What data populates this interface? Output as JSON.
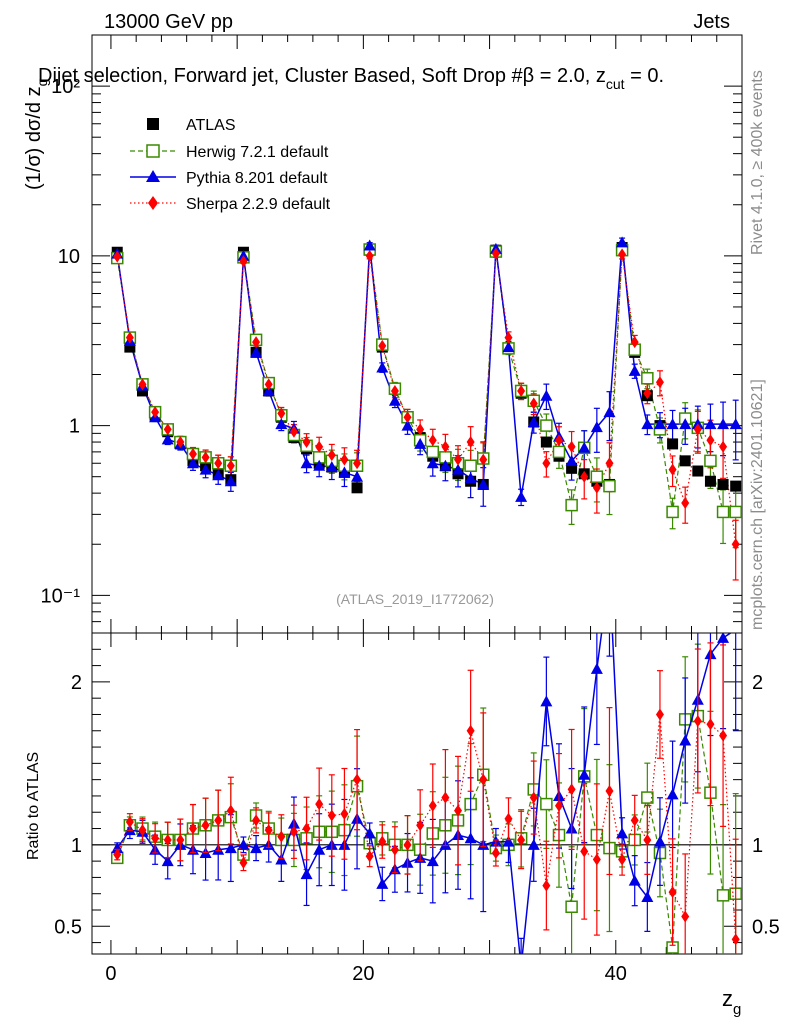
{
  "header": {
    "energy_label": "13000 GeV pp",
    "category_label": "Jets",
    "subtitle": "Dijet selection, Forward jet, Cluster Based, Soft Drop #β = 2.0, z",
    "subtitle_sub": "cut",
    "subtitle_tail": " = 0.",
    "side_label_top": "Rivet 4.1.0, ≥ 400k events",
    "side_label_bottom": "mcplots.cern.ch [arXiv:2401.10621]",
    "analysis_label": "(ATLAS_2019_I1772062)"
  },
  "colors": {
    "atlas": "#000000",
    "herwig": "#3a8a00",
    "pythia": "#0000e6",
    "sherpa": "#ff0000"
  },
  "chart_data": {
    "type": "scatter",
    "x_label": "z",
    "x_label_sub": "g",
    "y_label_main": "(1/σ) dσ/d z",
    "y_label_main_sub": "g",
    "y_label_ratio": "Ratio to ATLAS",
    "xlim": [
      -1.5,
      50.0
    ],
    "ylim_main": [
      0.06,
      200
    ],
    "ylim_ratio": [
      0.33,
      2.3
    ],
    "y_scale_main": "log",
    "x_ticks": [
      0,
      20,
      40
    ],
    "x_tick_labels": [
      "0",
      "20",
      "40"
    ],
    "y_ticks_main": [
      0.1,
      1,
      10,
      100
    ],
    "y_tick_labels_main": [
      "10⁻¹",
      "1",
      "10",
      "10²"
    ],
    "y_ticks_ratio": [
      0.5,
      1,
      2
    ],
    "y_tick_labels_ratio": [
      "0.5",
      "1",
      "2"
    ],
    "legend_position": "top-left",
    "x": [
      0.5,
      1.5,
      2.5,
      3.5,
      4.5,
      5.5,
      6.5,
      7.5,
      8.5,
      9.5,
      10.5,
      11.5,
      12.5,
      13.5,
      14.5,
      15.5,
      16.5,
      17.5,
      18.5,
      19.5,
      20.5,
      21.5,
      22.5,
      23.5,
      24.5,
      25.5,
      26.5,
      27.5,
      28.5,
      29.5,
      30.5,
      31.5,
      32.5,
      33.5,
      34.5,
      35.5,
      36.5,
      37.5,
      38.5,
      39.5,
      40.5,
      41.5,
      42.5,
      43.5,
      44.5,
      45.5,
      46.5,
      47.5,
      48.5,
      49.5
    ],
    "series": [
      {
        "name": "ATLAS",
        "key": "atlas",
        "marker": "square-filled",
        "values": [
          10.5,
          2.9,
          1.6,
          1.15,
          0.92,
          0.78,
          0.62,
          0.58,
          0.52,
          0.48,
          10.5,
          2.7,
          1.6,
          1.12,
          0.85,
          0.73,
          0.6,
          0.57,
          0.53,
          0.43,
          10.8,
          2.9,
          1.65,
          1.12,
          0.85,
          0.66,
          0.58,
          0.52,
          0.47,
          0.45,
          10.8,
          2.85,
          1.55,
          1.05,
          0.8,
          0.66,
          0.56,
          0.52,
          0.47,
          0.45,
          11.2,
          2.7,
          1.5,
          1.0,
          0.78,
          0.62,
          0.54,
          0.47,
          0.45,
          0.44
        ]
      },
      {
        "name": "Herwig 7.2.1 default",
        "key": "herwig",
        "marker": "square-open",
        "line": "dashed",
        "values": [
          9.7,
          3.3,
          1.75,
          1.2,
          0.95,
          0.8,
          0.68,
          0.65,
          0.6,
          0.58,
          9.8,
          3.2,
          1.78,
          1.15,
          0.88,
          0.76,
          0.65,
          0.62,
          0.58,
          0.58,
          10.9,
          3.0,
          1.65,
          1.12,
          0.82,
          0.7,
          0.65,
          0.6,
          0.58,
          0.64,
          10.6,
          2.85,
          1.6,
          1.4,
          1.0,
          0.7,
          0.34,
          0.74,
          0.5,
          0.44,
          10.8,
          2.8,
          1.9,
          0.95,
          0.31,
          1.1,
          0.97,
          0.62,
          0.31,
          0.31
        ]
      },
      {
        "name": "Pythia 8.201 default",
        "key": "pythia",
        "marker": "triangle-filled",
        "line": "solid",
        "values": [
          10.3,
          3.15,
          1.72,
          1.12,
          0.83,
          0.78,
          0.6,
          0.55,
          0.51,
          0.47,
          10.0,
          2.7,
          1.6,
          1.02,
          0.96,
          0.6,
          0.58,
          0.57,
          0.53,
          0.5,
          11.5,
          2.2,
          1.4,
          1.0,
          0.78,
          0.6,
          0.58,
          0.55,
          0.49,
          0.45,
          11.0,
          2.9,
          0.38,
          1.05,
          1.5,
          0.86,
          0.62,
          0.74,
          0.98,
          1.2,
          12.0,
          2.1,
          1.02,
          1.02,
          1.02,
          1.02,
          1.02,
          1.02,
          1.02,
          1.02
        ]
      },
      {
        "name": "Sherpa 2.2.9 default",
        "key": "sherpa",
        "marker": "diamond-filled",
        "line": "dotted",
        "values": [
          9.9,
          3.3,
          1.75,
          1.2,
          0.95,
          0.8,
          0.68,
          0.65,
          0.6,
          0.58,
          9.3,
          3.1,
          1.75,
          1.18,
          0.92,
          0.8,
          0.75,
          0.67,
          0.63,
          0.6,
          10.0,
          2.95,
          1.6,
          1.12,
          0.95,
          0.82,
          0.75,
          0.63,
          0.8,
          0.63,
          10.3,
          3.3,
          1.6,
          1.35,
          0.6,
          0.82,
          0.75,
          0.5,
          0.43,
          0.6,
          10.2,
          3.1,
          1.55,
          1.8,
          0.55,
          0.35,
          0.95,
          0.82,
          0.75,
          0.2
        ]
      }
    ],
    "ratio_series": [
      {
        "name": "Herwig 7.2.1 default",
        "key": "herwig",
        "values": [
          0.92,
          1.12,
          1.1,
          1.05,
          1.03,
          1.03,
          1.1,
          1.12,
          1.15,
          1.17,
          0.94,
          1.18,
          1.1,
          1.03,
          1.03,
          1.04,
          1.08,
          1.08,
          1.09,
          1.36,
          1.01,
          1.04,
          1.0,
          1.0,
          0.97,
          1.07,
          1.12,
          1.15,
          1.25,
          1.43,
          0.98,
          1.0,
          1.04,
          1.34,
          1.25,
          1.06,
          0.62,
          1.42,
          1.06,
          0.98,
          0.96,
          1.03,
          1.29,
          0.95,
          0.37,
          1.77,
          1.79,
          1.32,
          0.69,
          0.7
        ]
      },
      {
        "name": "Pythia 8.201 default",
        "key": "pythia",
        "values": [
          0.98,
          1.09,
          1.08,
          0.97,
          0.9,
          1.0,
          0.97,
          0.95,
          0.97,
          0.98,
          1.0,
          0.98,
          1.0,
          0.91,
          1.13,
          0.82,
          0.97,
          1.0,
          1.0,
          1.16,
          1.07,
          0.76,
          0.85,
          0.89,
          0.92,
          0.9,
          1.0,
          1.06,
          1.04,
          1.0,
          1.02,
          1.02,
          0.25,
          1.0,
          1.88,
          1.3,
          1.1,
          1.43,
          2.08,
          2.67,
          1.07,
          0.78,
          0.68,
          1.02,
          1.31,
          1.64,
          1.89,
          2.17,
          2.27,
          2.32
        ]
      },
      {
        "name": "Sherpa 2.2.9 default",
        "key": "sherpa",
        "values": [
          0.94,
          1.14,
          1.09,
          1.04,
          1.03,
          1.03,
          1.1,
          1.12,
          1.15,
          1.21,
          0.89,
          1.15,
          1.09,
          1.05,
          1.08,
          1.1,
          1.25,
          1.18,
          1.19,
          1.4,
          0.93,
          1.02,
          0.97,
          1.0,
          1.12,
          1.24,
          1.29,
          1.21,
          1.7,
          1.4,
          0.95,
          1.16,
          1.03,
          1.29,
          0.75,
          1.24,
          1.34,
          0.96,
          0.91,
          1.33,
          0.91,
          1.15,
          1.03,
          1.8,
          0.71,
          0.56,
          1.76,
          1.74,
          1.67,
          0.42
        ]
      }
    ]
  }
}
